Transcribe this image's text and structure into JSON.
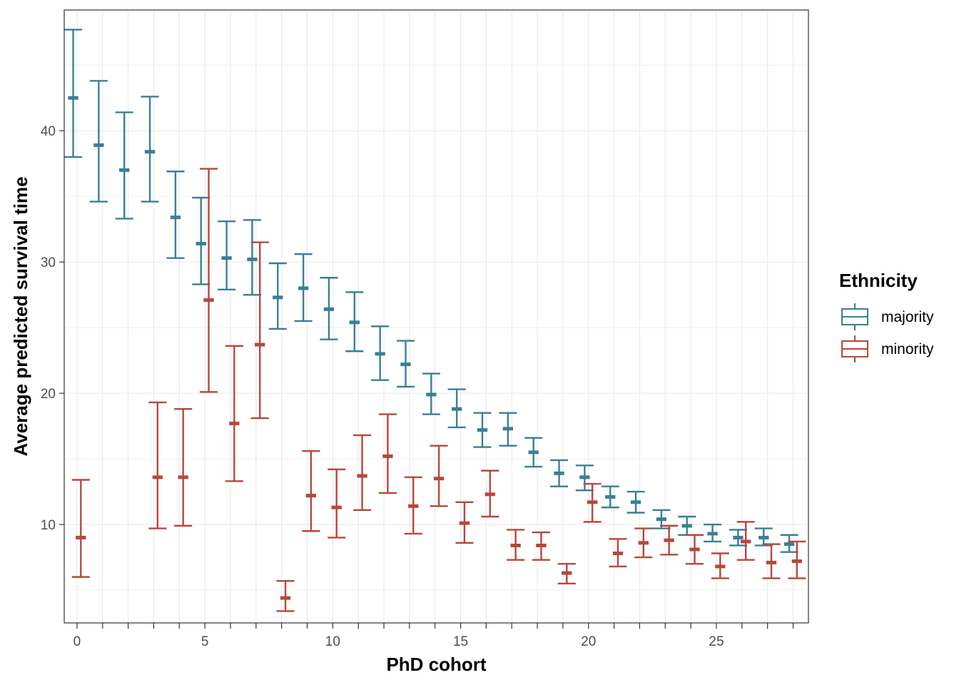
{
  "chart_data": {
    "type": "errorbar",
    "xlabel": "PhD cohort",
    "ylabel": "Average predicted survival time",
    "xlim": [
      -0.5,
      28.6
    ],
    "ylim": [
      2.5,
      49.2
    ],
    "x_ticks": [
      0,
      5,
      10,
      15,
      20,
      25
    ],
    "y_ticks": [
      10,
      20,
      30,
      40
    ],
    "grid": true,
    "legend": {
      "title": "Ethnicity",
      "position": "right"
    },
    "series": [
      {
        "name": "majority",
        "color": "#3a7f96",
        "points": [
          {
            "x": 0,
            "y": 42.5,
            "lo": 38.0,
            "hi": 47.7
          },
          {
            "x": 1,
            "y": 38.9,
            "lo": 34.6,
            "hi": 43.8
          },
          {
            "x": 2,
            "y": 37.0,
            "lo": 33.3,
            "hi": 41.4
          },
          {
            "x": 3,
            "y": 38.4,
            "lo": 34.6,
            "hi": 42.6
          },
          {
            "x": 4,
            "y": 33.4,
            "lo": 30.3,
            "hi": 36.9
          },
          {
            "x": 5,
            "y": 31.4,
            "lo": 28.3,
            "hi": 34.9
          },
          {
            "x": 6,
            "y": 30.3,
            "lo": 27.9,
            "hi": 33.1
          },
          {
            "x": 7,
            "y": 30.2,
            "lo": 27.5,
            "hi": 33.2
          },
          {
            "x": 8,
            "y": 27.3,
            "lo": 24.9,
            "hi": 29.9
          },
          {
            "x": 9,
            "y": 28.0,
            "lo": 25.5,
            "hi": 30.6
          },
          {
            "x": 10,
            "y": 26.4,
            "lo": 24.1,
            "hi": 28.8
          },
          {
            "x": 11,
            "y": 25.4,
            "lo": 23.2,
            "hi": 27.7
          },
          {
            "x": 12,
            "y": 23.0,
            "lo": 21.0,
            "hi": 25.1
          },
          {
            "x": 13,
            "y": 22.2,
            "lo": 20.5,
            "hi": 24.0
          },
          {
            "x": 14,
            "y": 19.9,
            "lo": 18.4,
            "hi": 21.5
          },
          {
            "x": 15,
            "y": 18.8,
            "lo": 17.4,
            "hi": 20.3
          },
          {
            "x": 16,
            "y": 17.2,
            "lo": 15.9,
            "hi": 18.5
          },
          {
            "x": 17,
            "y": 17.3,
            "lo": 16.0,
            "hi": 18.5
          },
          {
            "x": 18,
            "y": 15.5,
            "lo": 14.4,
            "hi": 16.6
          },
          {
            "x": 19,
            "y": 13.9,
            "lo": 12.9,
            "hi": 14.9
          },
          {
            "x": 20,
            "y": 13.6,
            "lo": 12.6,
            "hi": 14.5
          },
          {
            "x": 21,
            "y": 12.1,
            "lo": 11.3,
            "hi": 12.9
          },
          {
            "x": 22,
            "y": 11.7,
            "lo": 10.9,
            "hi": 12.5
          },
          {
            "x": 23,
            "y": 10.4,
            "lo": 9.7,
            "hi": 11.1
          },
          {
            "x": 24,
            "y": 9.9,
            "lo": 9.2,
            "hi": 10.6
          },
          {
            "x": 25,
            "y": 9.3,
            "lo": 8.7,
            "hi": 10.0
          },
          {
            "x": 26,
            "y": 9.0,
            "lo": 8.4,
            "hi": 9.6
          },
          {
            "x": 27,
            "y": 9.0,
            "lo": 8.4,
            "hi": 9.7
          },
          {
            "x": 28,
            "y": 8.5,
            "lo": 7.9,
            "hi": 9.2
          }
        ]
      },
      {
        "name": "minority",
        "color": "#b5483e",
        "points": [
          {
            "x": 0,
            "y": 9.0,
            "lo": 6.0,
            "hi": 13.4
          },
          {
            "x": 3,
            "y": 13.6,
            "lo": 9.7,
            "hi": 19.3
          },
          {
            "x": 4,
            "y": 13.6,
            "lo": 9.9,
            "hi": 18.8
          },
          {
            "x": 5,
            "y": 27.1,
            "lo": 20.1,
            "hi": 37.1
          },
          {
            "x": 6,
            "y": 17.7,
            "lo": 13.3,
            "hi": 23.6
          },
          {
            "x": 7,
            "y": 23.7,
            "lo": 18.1,
            "hi": 31.5
          },
          {
            "x": 8,
            "y": 4.4,
            "lo": 3.4,
            "hi": 5.7
          },
          {
            "x": 9,
            "y": 12.2,
            "lo": 9.5,
            "hi": 15.6
          },
          {
            "x": 10,
            "y": 11.3,
            "lo": 9.0,
            "hi": 14.2
          },
          {
            "x": 11,
            "y": 13.7,
            "lo": 11.1,
            "hi": 16.8
          },
          {
            "x": 12,
            "y": 15.2,
            "lo": 12.4,
            "hi": 18.4
          },
          {
            "x": 13,
            "y": 11.4,
            "lo": 9.3,
            "hi": 13.6
          },
          {
            "x": 14,
            "y": 13.5,
            "lo": 11.4,
            "hi": 16.0
          },
          {
            "x": 15,
            "y": 10.1,
            "lo": 8.6,
            "hi": 11.7
          },
          {
            "x": 16,
            "y": 12.3,
            "lo": 10.6,
            "hi": 14.1
          },
          {
            "x": 17,
            "y": 8.4,
            "lo": 7.3,
            "hi": 9.6
          },
          {
            "x": 18,
            "y": 8.4,
            "lo": 7.3,
            "hi": 9.4
          },
          {
            "x": 19,
            "y": 6.3,
            "lo": 5.5,
            "hi": 7.0
          },
          {
            "x": 20,
            "y": 11.7,
            "lo": 10.2,
            "hi": 13.1
          },
          {
            "x": 21,
            "y": 7.8,
            "lo": 6.8,
            "hi": 8.9
          },
          {
            "x": 22,
            "y": 8.6,
            "lo": 7.5,
            "hi": 9.7
          },
          {
            "x": 23,
            "y": 8.8,
            "lo": 7.7,
            "hi": 9.9
          },
          {
            "x": 24,
            "y": 8.1,
            "lo": 7.0,
            "hi": 9.2
          },
          {
            "x": 25,
            "y": 6.8,
            "lo": 5.9,
            "hi": 7.8
          },
          {
            "x": 26,
            "y": 8.7,
            "lo": 7.3,
            "hi": 10.2
          },
          {
            "x": 27,
            "y": 7.1,
            "lo": 5.9,
            "hi": 8.5
          },
          {
            "x": 28,
            "y": 7.2,
            "lo": 5.9,
            "hi": 8.7
          }
        ]
      }
    ]
  }
}
